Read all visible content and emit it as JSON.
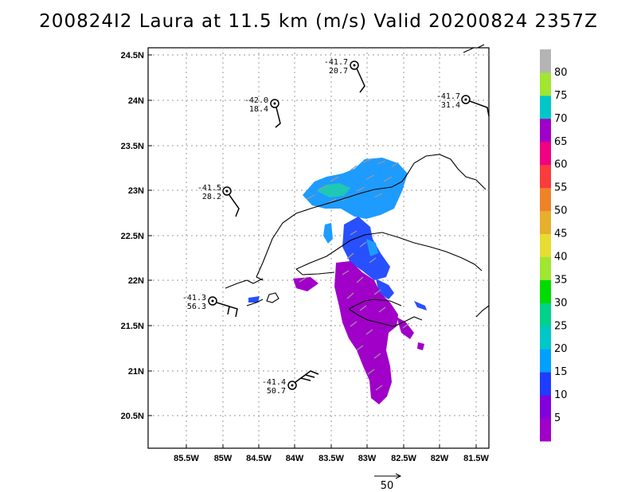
{
  "title": "200824I2 Laura at 11.5 km (m/s) Valid 20200824  2357Z",
  "map": {
    "lat_ticks": [
      "24.5N",
      "24N",
      "23.5N",
      "23N",
      "22.5N",
      "22N",
      "21.5N",
      "21N",
      "20.5N"
    ],
    "lon_ticks": [
      "85.5W",
      "85W",
      "84.5W",
      "84W",
      "83.5W",
      "83W",
      "82.5W",
      "82W",
      "81.5W"
    ],
    "lat_range": [
      20.15,
      24.6
    ],
    "lon_range": [
      -85.85,
      -81.35
    ],
    "grid": true
  },
  "colorbar": {
    "labels": [
      "5",
      "10",
      "15",
      "20",
      "25",
      "30",
      "35",
      "40",
      "45",
      "50",
      "55",
      "60",
      "65",
      "70",
      "75",
      "80"
    ],
    "colors": [
      "#a000c8",
      "#8200dc",
      "#1e3cff",
      "#00a0ff",
      "#00c8c8",
      "#00d28c",
      "#00dc00",
      "#a0e632",
      "#e6dc32",
      "#e6af2d",
      "#f08228",
      "#fa3c3c",
      "#f00082",
      "#a000c8",
      "#00c8c8",
      "#a0e632",
      "#b4b4b4"
    ]
  },
  "observations": [
    {
      "temp": "-41.7",
      "speed": "20.7"
    },
    {
      "temp": "-42.0",
      "speed": "18.4"
    },
    {
      "temp": "-41.7",
      "speed": "31.4"
    },
    {
      "temp": "-41.5",
      "speed": "28.2"
    },
    {
      "temp": "-41.3",
      "speed": "56.3"
    },
    {
      "temp": "-41.4",
      "speed": "50.7"
    }
  ],
  "scale_vector": {
    "label": "50"
  }
}
